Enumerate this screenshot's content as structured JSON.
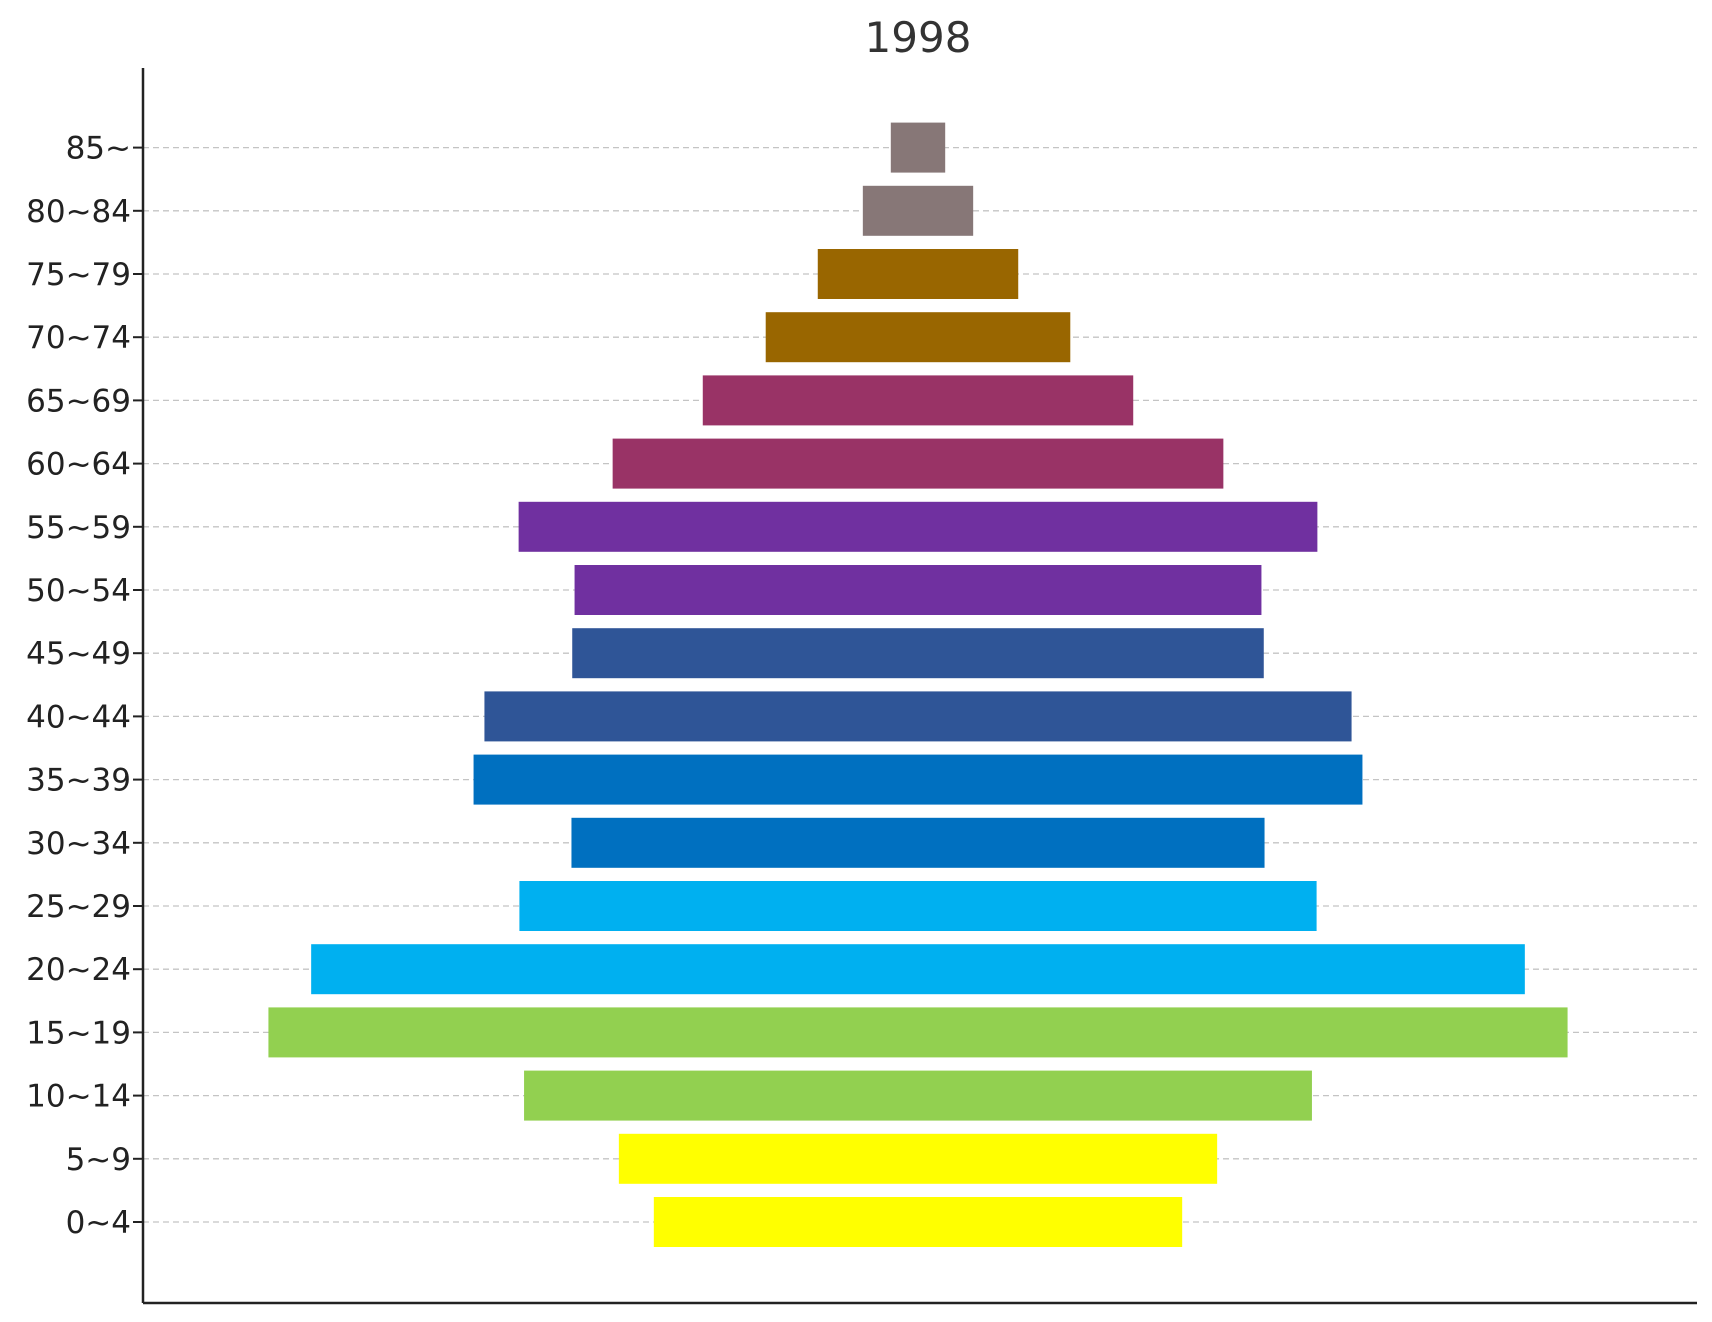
{
  "chart_data": {
    "type": "bar",
    "orientation": "horizontal",
    "style": "population pyramid (bars centered)",
    "title": "1998",
    "xlabel": "",
    "ylabel": "",
    "grid": "horizontal dashed",
    "legend": "none",
    "categories": [
      "0~4",
      "5~9",
      "10~14",
      "15~19",
      "20~24",
      "25~29",
      "30~34",
      "35~39",
      "40~44",
      "45~49",
      "50~54",
      "55~59",
      "60~64",
      "65~69",
      "70~74",
      "75~79",
      "80~84",
      "85~"
    ],
    "values": [
      0.34,
      0.385,
      0.507,
      0.836,
      0.781,
      0.513,
      0.446,
      0.572,
      0.558,
      0.445,
      0.442,
      0.514,
      0.393,
      0.277,
      0.196,
      0.129,
      0.071,
      0.035
    ],
    "colors": [
      "#ffff00",
      "#ffff00",
      "#92d050",
      "#92d050",
      "#00b0f0",
      "#00b0f0",
      "#0070c0",
      "#0070c0",
      "#2f5597",
      "#2f5597",
      "#7030a0",
      "#7030a0",
      "#993366",
      "#993366",
      "#996600",
      "#996600",
      "#877777",
      "#877777"
    ]
  }
}
